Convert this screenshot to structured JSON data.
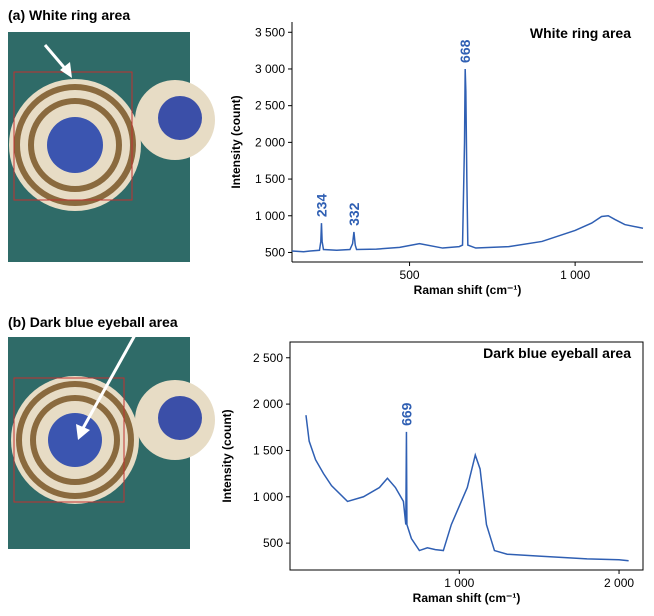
{
  "panels": [
    "(a) White ring area",
    "(b) Dark blue eyeball area"
  ],
  "chart_data": [
    {
      "type": "line",
      "title": "White ring area",
      "xlabel": "Raman shift (cm⁻¹)",
      "ylabel": "Intensity (count)",
      "frame": false,
      "color": "#2f5fb3",
      "x": [
        145,
        180,
        200,
        228,
        232,
        234,
        236,
        240,
        280,
        320,
        328,
        332,
        336,
        340,
        400,
        470,
        530,
        600,
        650,
        660,
        666,
        668,
        670,
        673,
        676,
        700,
        800,
        900,
        1000,
        1050,
        1080,
        1100,
        1120,
        1150,
        1205
      ],
      "values": [
        520,
        510,
        520,
        530,
        650,
        900,
        650,
        540,
        530,
        540,
        620,
        780,
        600,
        540,
        545,
        570,
        620,
        560,
        580,
        600,
        2000,
        3000,
        2700,
        1500,
        600,
        560,
        580,
        650,
        800,
        900,
        990,
        1000,
        950,
        880,
        830
      ],
      "peak_labels": [
        234,
        332,
        668
      ],
      "xlim": [
        145,
        1205
      ],
      "xticks": [
        500,
        {
          "value": 1000,
          "label": "1 000"
        }
      ],
      "ylim": [
        370,
        3640
      ],
      "yticks": [
        500,
        {
          "value": 1000,
          "label": "1 000"
        },
        {
          "value": 1500,
          "label": "1 500"
        },
        {
          "value": 2000,
          "label": "2 000"
        },
        {
          "value": 2500,
          "label": "2 500"
        },
        {
          "value": 3000,
          "label": "3 000"
        },
        {
          "value": 3500,
          "label": "3 500"
        }
      ]
    },
    {
      "type": "line",
      "title": "Dark blue eyeball area",
      "xlabel": "Raman shift (cm⁻¹)",
      "ylabel": "Intensity (count)",
      "frame": true,
      "color": "#2f5fb3",
      "x": [
        40,
        60,
        100,
        150,
        200,
        300,
        400,
        500,
        550,
        600,
        650,
        665,
        669,
        672,
        700,
        750,
        800,
        850,
        900,
        950,
        1000,
        1050,
        1100,
        1130,
        1170,
        1220,
        1300,
        1500,
        1800,
        2000,
        2060
      ],
      "values": [
        1880,
        1600,
        1400,
        1250,
        1120,
        950,
        1000,
        1100,
        1200,
        1100,
        950,
        700,
        1700,
        700,
        550,
        420,
        450,
        430,
        420,
        700,
        900,
        1100,
        1450,
        1300,
        700,
        420,
        380,
        360,
        330,
        320,
        310
      ],
      "peak_labels": [
        669
      ],
      "xlim": [
        -60,
        2150
      ],
      "xticks": [
        {
          "value": 1000,
          "label": "1 000"
        },
        {
          "value": 2000,
          "label": "2 000"
        }
      ],
      "ylim": [
        210,
        2670
      ],
      "yticks": [
        500,
        {
          "value": 1000,
          "label": "1 000"
        },
        {
          "value": 1500,
          "label": "1 500"
        },
        {
          "value": 2000,
          "label": "2 000"
        },
        {
          "value": 2500,
          "label": "2 500"
        }
      ]
    }
  ]
}
